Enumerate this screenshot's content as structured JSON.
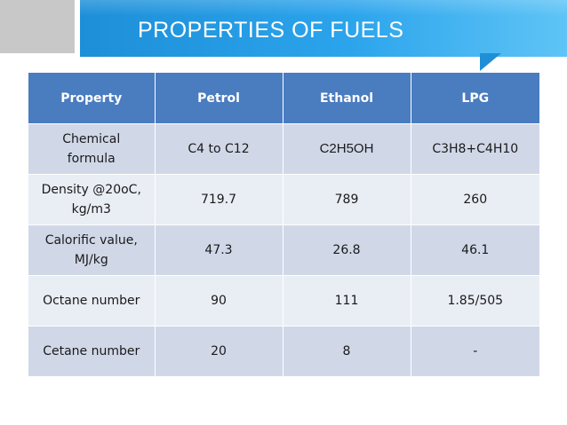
{
  "slide": {
    "title": "PROPERTIES OF FUELS"
  },
  "table": {
    "headers": [
      "Property",
      "Petrol",
      "Ethanol",
      "LPG"
    ],
    "rows": [
      {
        "property": [
          "Chemical",
          "formula"
        ],
        "petrol": "C4 to C12",
        "ethanol": "C2H5OH",
        "lpg": "C3H8+C4H10"
      },
      {
        "property": [
          "Density @20oC,",
          "kg/m3"
        ],
        "petrol": "719.7",
        "ethanol": "789",
        "lpg": "260"
      },
      {
        "property": [
          "Calorific value,",
          "MJ/kg"
        ],
        "petrol": "47.3",
        "ethanol": "26.8",
        "lpg": "46.1"
      },
      {
        "property": [
          "Octane number"
        ],
        "petrol": "90",
        "ethanol": "111",
        "lpg": "1.85/505"
      },
      {
        "property": [
          "Cetane number"
        ],
        "petrol": "20",
        "ethanol": "8",
        "lpg": "-"
      }
    ]
  },
  "colors": {
    "header_bg": "#4a7cc0",
    "row_dark": "#d0d8e8",
    "row_light": "#e9edf4",
    "banner": "#2ba4ec"
  }
}
